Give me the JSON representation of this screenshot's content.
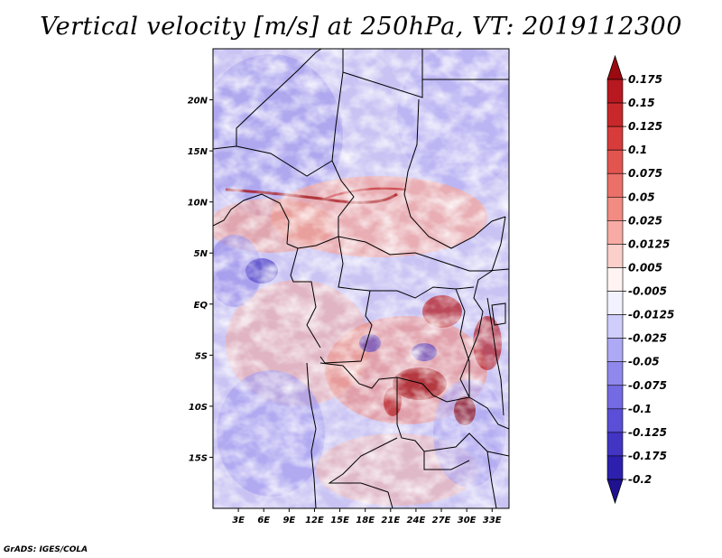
{
  "title": "Vertical velocity [m/s] at 250hPa, VT: 2019112300",
  "credit": "GrADS: IGES/COLA",
  "map": {
    "lon_range": [
      0,
      35
    ],
    "lat_range": [
      -20,
      25
    ],
    "x_ticks": [
      {
        "lon": 3,
        "label": "3E"
      },
      {
        "lon": 6,
        "label": "6E"
      },
      {
        "lon": 9,
        "label": "9E"
      },
      {
        "lon": 12,
        "label": "12E"
      },
      {
        "lon": 15,
        "label": "15E"
      },
      {
        "lon": 18,
        "label": "18E"
      },
      {
        "lon": 21,
        "label": "21E"
      },
      {
        "lon": 24,
        "label": "24E"
      },
      {
        "lon": 27,
        "label": "27E"
      },
      {
        "lon": 30,
        "label": "30E"
      },
      {
        "lon": 33,
        "label": "33E"
      }
    ],
    "y_ticks": [
      {
        "lat": 20,
        "label": "20N"
      },
      {
        "lat": 15,
        "label": "15N"
      },
      {
        "lat": 10,
        "label": "10N"
      },
      {
        "lat": 5,
        "label": "5N"
      },
      {
        "lat": 0,
        "label": "EQ"
      },
      {
        "lat": -5,
        "label": "5S"
      },
      {
        "lat": -10,
        "label": "10S"
      },
      {
        "lat": -15,
        "label": "15S"
      }
    ]
  },
  "colorbar": {
    "levels": [
      {
        "label": "0.175",
        "color": "#a50f15"
      },
      {
        "label": "0.15",
        "color": "#b8181f"
      },
      {
        "label": "0.125",
        "color": "#c9282a"
      },
      {
        "label": "0.1",
        "color": "#d73c3a"
      },
      {
        "label": "0.075",
        "color": "#e2554f"
      },
      {
        "label": "0.05",
        "color": "#ea7068"
      },
      {
        "label": "0.025",
        "color": "#f28b82"
      },
      {
        "label": "0.0125",
        "color": "#f7aba4"
      },
      {
        "label": "0.005",
        "color": "#fbcfca"
      },
      {
        "label": "-0.005",
        "color": "#fff4f2"
      },
      {
        "label": "-0.0125",
        "color": "#f2f2ff"
      },
      {
        "label": "-0.025",
        "color": "#cfcdfb"
      },
      {
        "label": "-0.05",
        "color": "#aea9f4"
      },
      {
        "label": "-0.075",
        "color": "#9088ec"
      },
      {
        "label": "-0.1",
        "color": "#746ae3"
      },
      {
        "label": "-0.125",
        "color": "#5a4fd6"
      },
      {
        "label": "-0.175",
        "color": "#4235c4"
      },
      {
        "label": "-0.2",
        "color": "#2e20ae"
      }
    ],
    "top_cap_color": "#9b0a10",
    "bottom_cap_color": "#1f1190"
  }
}
